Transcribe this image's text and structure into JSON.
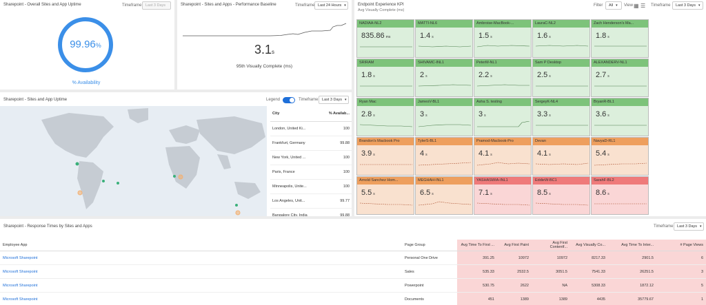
{
  "uptime_panel": {
    "title": "Sharepoint - Overall Sites and App Uptime",
    "timeframe_label": "Timeframe",
    "timeframe_value": "Last 3 Days",
    "value": "99.96",
    "value_unit": "%",
    "label": "% Availability"
  },
  "perf_panel": {
    "title": "Sharepoint - Sites and Apps - Performance Baseline",
    "timeframe_label": "Timeframe",
    "timeframe_value": "Last 24 Hours",
    "value": "3.1",
    "value_unit": "s",
    "subtitle": "95th Visually Complete (ms)"
  },
  "map_panel": {
    "title": "Sharepoint - Sites and App Uptime",
    "legend_label": "Legend",
    "timeframe_label": "Timeframe",
    "timeframe_value": "Last 3 Days",
    "columns": [
      "City",
      "% Availab..."
    ],
    "rows": [
      {
        "city": "London, United Ki...",
        "value": "100"
      },
      {
        "city": "Frankfurt, Germany",
        "value": "99.88"
      },
      {
        "city": "New York, United ...",
        "value": "100"
      },
      {
        "city": "Paris, France",
        "value": "100"
      },
      {
        "city": "Minneapolis, Unite...",
        "value": "100"
      },
      {
        "city": "Los Angeles, Unit...",
        "value": "99.77"
      },
      {
        "city": "Bangalore City, India",
        "value": "99.88"
      }
    ]
  },
  "kpi_panel": {
    "title": "Endpoint Experience KPI",
    "subtitle": "Avg Visually Complete (ms)",
    "filter_label": "Filter",
    "filter_value": "All",
    "view_label": "View",
    "timeframe_label": "Timeframe",
    "timeframe_value": "Last 3 Days",
    "tiles": [
      {
        "name": "NADIAA-NL2",
        "value": "835.86",
        "unit": "ms",
        "status": "g"
      },
      {
        "name": "MATTI-NL6",
        "value": "1.4",
        "unit": "s",
        "status": "g"
      },
      {
        "name": "Ambroise-MacBook-...",
        "value": "1.5",
        "unit": "s",
        "status": "g"
      },
      {
        "name": "LauraC-NL2",
        "value": "1.6",
        "unit": "s",
        "status": "g"
      },
      {
        "name": "Zach Henderson's Ma...",
        "value": "1.8",
        "unit": "s",
        "status": "g"
      },
      {
        "name": "SRIRAM",
        "value": "1.8",
        "unit": "s",
        "status": "g"
      },
      {
        "name": "SHIVAMC-INL1",
        "value": "2",
        "unit": "s",
        "status": "g"
      },
      {
        "name": "PeterM-NL1",
        "value": "2.2",
        "unit": "s",
        "status": "g"
      },
      {
        "name": "Sam P Desktop",
        "value": "2.5",
        "unit": "s",
        "status": "g"
      },
      {
        "name": "ALEXANDERV-NL1",
        "value": "2.7",
        "unit": "s",
        "status": "g"
      },
      {
        "name": "Ryan Mac",
        "value": "2.8",
        "unit": "s",
        "status": "g"
      },
      {
        "name": "JamesV-BL1",
        "value": "3",
        "unit": "s",
        "status": "g"
      },
      {
        "name": "Asha S. testing",
        "value": "3",
        "unit": "s",
        "status": "g"
      },
      {
        "name": "SergeyK-NL4",
        "value": "3.3",
        "unit": "s",
        "status": "g"
      },
      {
        "name": "BryanR-BL1",
        "value": "3.6",
        "unit": "s",
        "status": "g"
      },
      {
        "name": "Brandon's Macbook Pro",
        "value": "3.9",
        "unit": "s",
        "status": "o"
      },
      {
        "name": "TylerS-BL1",
        "value": "4",
        "unit": "s",
        "status": "o"
      },
      {
        "name": "Pramod-Macbook-Pro",
        "value": "4.1",
        "unit": "s",
        "status": "o"
      },
      {
        "name": "Devan",
        "value": "4.1",
        "unit": "s",
        "status": "o"
      },
      {
        "name": "NavyaD-RL1",
        "value": "5.4",
        "unit": "s",
        "status": "o"
      },
      {
        "name": "Arnold Sanchez Hom...",
        "value": "5.5",
        "unit": "s",
        "status": "o"
      },
      {
        "name": "MEGHAH-INL1",
        "value": "6.5",
        "unit": "s",
        "status": "o"
      },
      {
        "name": "YASHASWIA-INL1",
        "value": "7.1",
        "unit": "s",
        "status": "r"
      },
      {
        "name": "EddieW-BC1",
        "value": "8.5",
        "unit": "s",
        "status": "r"
      },
      {
        "name": "SarahF-BL2",
        "value": "8.6",
        "unit": "s",
        "status": "r"
      }
    ]
  },
  "resp_panel": {
    "title": "Sharepoint - Response Times by Sites and Apps",
    "timeframe_label": "Timeframe",
    "timeframe_value": "Last 3 Days",
    "columns": [
      "Employee App",
      "Page Group",
      "Avg Time To First ...",
      "Avg First Paint",
      "Avg First Contentf...",
      "Avg Visually Co...",
      "Avg Time To Inter...",
      "# Page Views"
    ],
    "rows": [
      [
        "Microsoft Sharepoint",
        "Personal One Drive",
        "391.25",
        "10972",
        "10972",
        "8217.33",
        "2901.5",
        "6"
      ],
      [
        "Microsoft Sharepoint",
        "Sales",
        "535.33",
        "2532.5",
        "3051.5",
        "7541.33",
        "26251.5",
        "3"
      ],
      [
        "Microsoft Sharepoint",
        "Powerpoint",
        "530.75",
        "2622",
        "NA",
        "5308.33",
        "1872.12",
        "5"
      ],
      [
        "Microsoft Sharepoint",
        "Documents",
        "451",
        "1389",
        "1389",
        "4435",
        "35779.67",
        "1"
      ]
    ]
  },
  "colors": {
    "accent": "#3b8fe8",
    "link": "#1e6fd9",
    "good": "#7dc37a",
    "warn": "#ee9f5e",
    "bad": "#ef7a7a"
  }
}
